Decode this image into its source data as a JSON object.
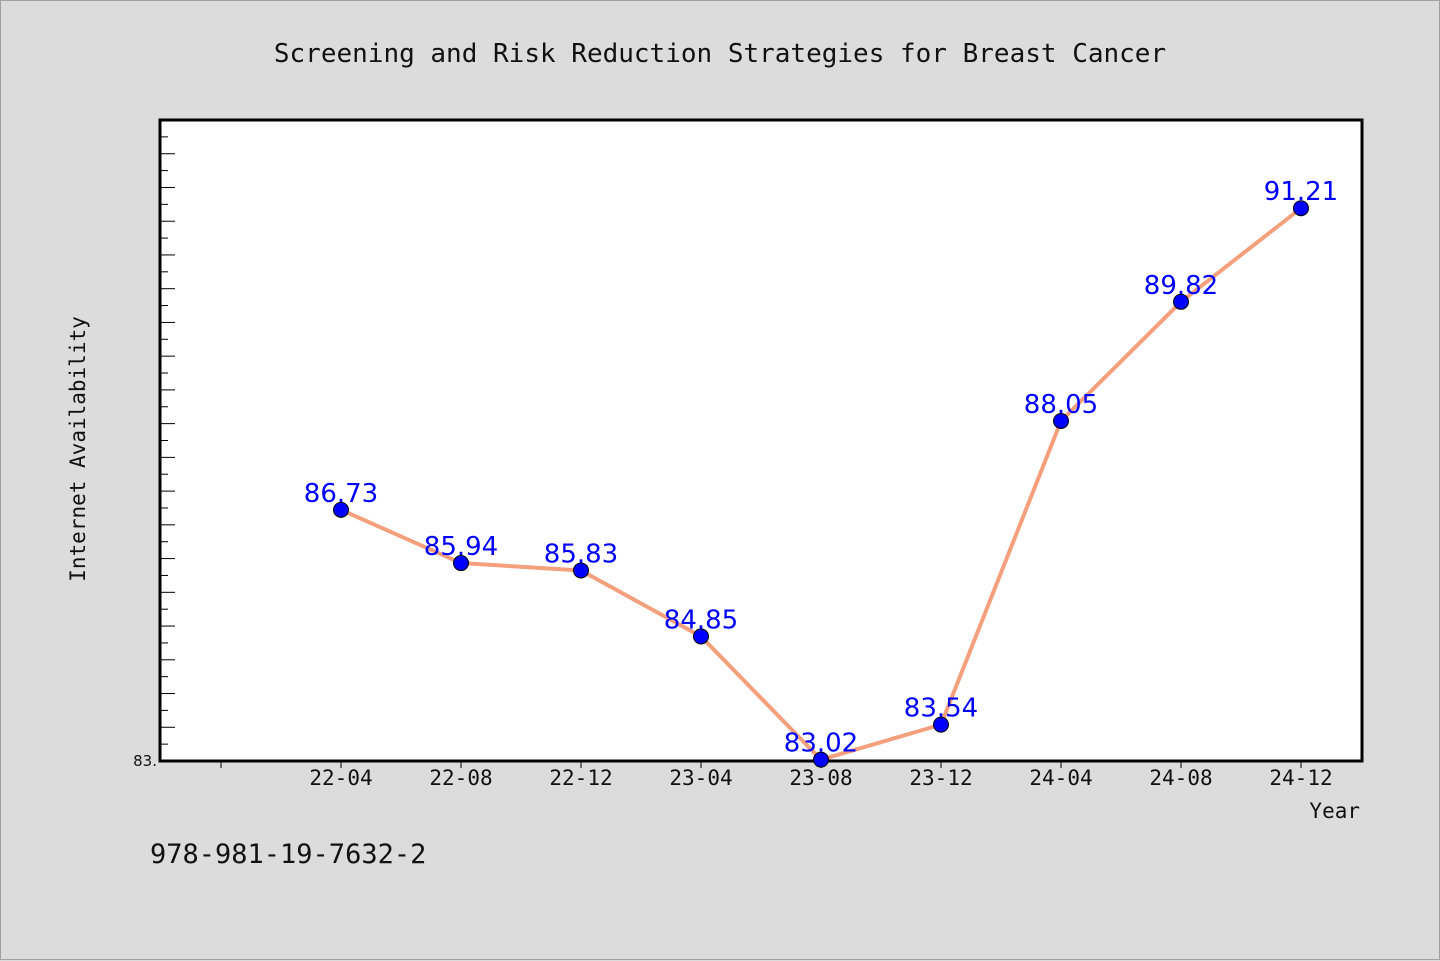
{
  "chart_data": {
    "type": "line",
    "title": "Screening and Risk Reduction Strategies for Breast Cancer",
    "xlabel": "Year",
    "ylabel": "Internet Availability",
    "categories": [
      "22-04",
      "22-08",
      "22-12",
      "23-04",
      "23-08",
      "23-12",
      "24-04",
      "24-08",
      "24-12"
    ],
    "series": [
      {
        "values": [
          86.73,
          85.94,
          85.83,
          84.85,
          83.02,
          83.54,
          88.05,
          89.82,
          91.21
        ],
        "labels": [
          "86.73",
          "85.94",
          "85.83",
          "84.85",
          "83.02",
          "83.54",
          "88.05",
          "89.82",
          "91.21"
        ]
      }
    ],
    "ylim": [
      83.0,
      92.52
    ],
    "y_tick_labels": [
      "83."
    ],
    "y_tick_values": [
      83.0
    ],
    "grid": false,
    "colors": {
      "line": "#f4a07c",
      "marker": "#0000ff",
      "label": "#0000ff",
      "background": "#dcdcdc",
      "plot_bg": "#ffffff"
    }
  },
  "footer": {
    "isbn": "978-981-19-7632-2"
  }
}
